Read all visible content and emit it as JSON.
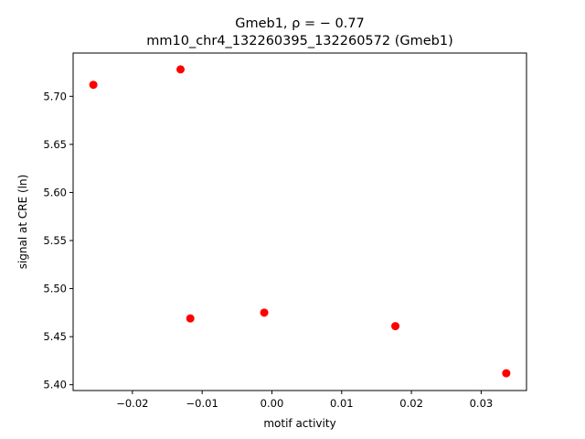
{
  "chart_data": {
    "type": "scatter",
    "title_line1": "Gmeb1, ρ = − 0.77",
    "title_line2": "mm10_chr4_132260395_132260572 (Gmeb1)",
    "xlabel": "motif activity",
    "ylabel": "signal at CRE (ln)",
    "xlim": [
      -0.0285,
      0.0365
    ],
    "ylim": [
      5.394,
      5.745
    ],
    "xticks": [
      {
        "value": -0.02,
        "label": "−0.02"
      },
      {
        "value": -0.01,
        "label": "−0.01"
      },
      {
        "value": 0.0,
        "label": "0.00"
      },
      {
        "value": 0.01,
        "label": "0.01"
      },
      {
        "value": 0.02,
        "label": "0.02"
      },
      {
        "value": 0.03,
        "label": "0.03"
      }
    ],
    "yticks": [
      {
        "value": 5.4,
        "label": "5.40"
      },
      {
        "value": 5.45,
        "label": "5.45"
      },
      {
        "value": 5.5,
        "label": "5.50"
      },
      {
        "value": 5.55,
        "label": "5.55"
      },
      {
        "value": 5.6,
        "label": "5.60"
      },
      {
        "value": 5.65,
        "label": "5.65"
      },
      {
        "value": 5.7,
        "label": "5.70"
      }
    ],
    "grid": false,
    "marker_color": "#ff0000",
    "points": [
      {
        "x": -0.0256,
        "y": 5.712
      },
      {
        "x": -0.0131,
        "y": 5.728
      },
      {
        "x": -0.0117,
        "y": 5.469
      },
      {
        "x": -0.0011,
        "y": 5.475
      },
      {
        "x": 0.0177,
        "y": 5.461
      },
      {
        "x": 0.0336,
        "y": 5.412
      }
    ]
  }
}
